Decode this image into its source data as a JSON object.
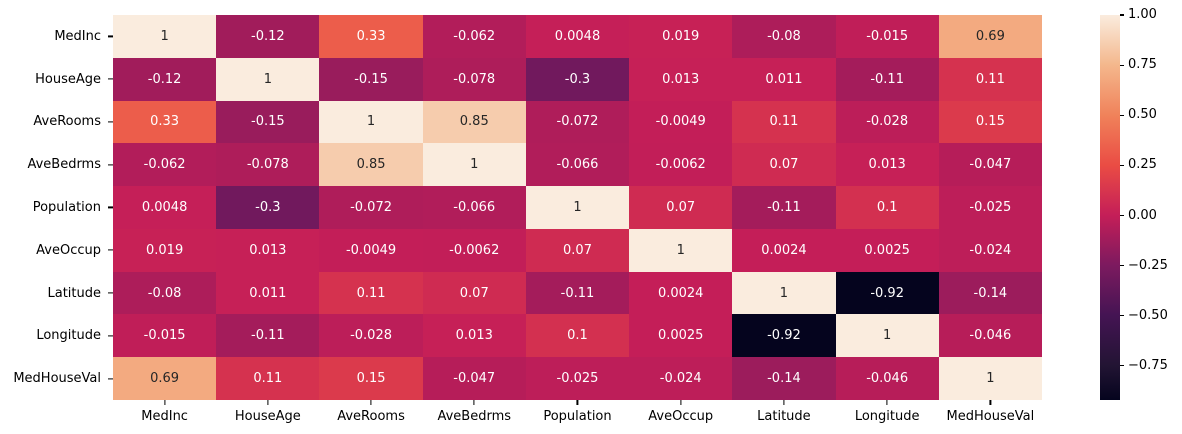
{
  "chart_data": {
    "type": "heatmap",
    "title": "",
    "xlabel": "",
    "ylabel": "",
    "categories": [
      "MedInc",
      "HouseAge",
      "AveRooms",
      "AveBedrms",
      "Population",
      "AveOccup",
      "Latitude",
      "Longitude",
      "MedHouseVal"
    ],
    "matrix": [
      [
        1,
        -0.12,
        0.33,
        -0.062,
        0.0048,
        0.019,
        -0.08,
        -0.015,
        0.69
      ],
      [
        -0.12,
        1,
        -0.15,
        -0.078,
        -0.3,
        0.013,
        0.011,
        -0.11,
        0.11
      ],
      [
        0.33,
        -0.15,
        1,
        0.85,
        -0.072,
        -0.0049,
        0.11,
        -0.028,
        0.15
      ],
      [
        -0.062,
        -0.078,
        0.85,
        1,
        -0.066,
        -0.0062,
        0.07,
        0.013,
        -0.047
      ],
      [
        0.0048,
        -0.3,
        -0.072,
        -0.066,
        1,
        0.07,
        -0.11,
        0.1,
        -0.025
      ],
      [
        0.019,
        0.013,
        -0.0049,
        -0.0062,
        0.07,
        1,
        0.0024,
        0.0025,
        -0.024
      ],
      [
        -0.08,
        0.011,
        0.11,
        0.07,
        -0.11,
        0.0024,
        1,
        -0.92,
        -0.14
      ],
      [
        -0.015,
        -0.11,
        -0.028,
        0.013,
        0.1,
        0.0025,
        -0.92,
        1,
        -0.046
      ],
      [
        0.69,
        0.11,
        0.15,
        -0.047,
        -0.025,
        -0.024,
        -0.14,
        -0.046,
        1
      ]
    ],
    "annotations": [
      [
        "1",
        "-0.12",
        "0.33",
        "-0.062",
        "0.0048",
        "0.019",
        "-0.08",
        "-0.015",
        "0.69"
      ],
      [
        "-0.12",
        "1",
        "-0.15",
        "-0.078",
        "-0.3",
        "0.013",
        "0.011",
        "-0.11",
        "0.11"
      ],
      [
        "0.33",
        "-0.15",
        "1",
        "0.85",
        "-0.072",
        "-0.0049",
        "0.11",
        "-0.028",
        "0.15"
      ],
      [
        "-0.062",
        "-0.078",
        "0.85",
        "1",
        "-0.066",
        "-0.0062",
        "0.07",
        "0.013",
        "-0.047"
      ],
      [
        "0.0048",
        "-0.3",
        "-0.072",
        "-0.066",
        "1",
        "0.07",
        "-0.11",
        "0.1",
        "-0.025"
      ],
      [
        "0.019",
        "0.013",
        "-0.0049",
        "-0.0062",
        "0.07",
        "1",
        "0.0024",
        "0.0025",
        "-0.024"
      ],
      [
        "-0.08",
        "0.011",
        "0.11",
        "0.07",
        "-0.11",
        "0.0024",
        "1",
        "-0.92",
        "-0.14"
      ],
      [
        "-0.015",
        "-0.11",
        "-0.028",
        "0.013",
        "0.1",
        "0.0025",
        "-0.92",
        "1",
        "-0.046"
      ],
      [
        "0.69",
        "0.11",
        "0.15",
        "-0.047",
        "-0.025",
        "-0.024",
        "-0.14",
        "-0.046",
        "1"
      ]
    ],
    "vmin": -0.92,
    "vmax": 1.0,
    "grid_on": false,
    "colormap": {
      "name": "rocket",
      "anchors": [
        {
          "value": -0.92,
          "hex": "#05041E"
        },
        {
          "value": -0.75,
          "hex": "#221433"
        },
        {
          "value": -0.5,
          "hex": "#441453"
        },
        {
          "value": -0.25,
          "hex": "#7C1A5F"
        },
        {
          "value": 0.0,
          "hex": "#C41E58"
        },
        {
          "value": 0.25,
          "hex": "#EA4C44"
        },
        {
          "value": 0.5,
          "hex": "#F0825A"
        },
        {
          "value": 0.75,
          "hex": "#F4B78C"
        },
        {
          "value": 1.0,
          "hex": "#FAECDE"
        }
      ]
    },
    "colorbar": {
      "position": "right",
      "ticks": [
        {
          "value": 1.0,
          "label": "1.00"
        },
        {
          "value": 0.75,
          "label": "0.75"
        },
        {
          "value": 0.5,
          "label": "0.50"
        },
        {
          "value": 0.25,
          "label": "0.25"
        },
        {
          "value": 0.0,
          "label": "0.00"
        },
        {
          "value": -0.25,
          "label": "−0.25"
        },
        {
          "value": -0.5,
          "label": "−0.50"
        },
        {
          "value": -0.75,
          "label": "−0.75"
        }
      ]
    },
    "text_colors": {
      "dark": "#262626",
      "light": "#ffffff"
    },
    "axis_tick_color": "#000000",
    "background": "#ffffff"
  }
}
